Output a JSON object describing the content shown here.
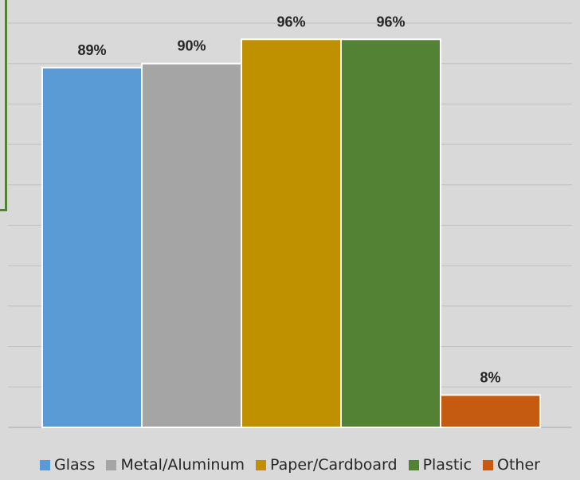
{
  "chart_data": {
    "type": "bar",
    "categories": [
      "Glass",
      "Metal/Aluminum",
      "Paper/Cardboard",
      "Plastic",
      "Other"
    ],
    "values": [
      89,
      90,
      96,
      96,
      8
    ],
    "value_labels": [
      "89%",
      "90%",
      "96%",
      "96%",
      "8%"
    ],
    "colors": [
      "#5b9bd5",
      "#a5a5a5",
      "#bf9000",
      "#548235",
      "#c55a11"
    ],
    "ylim": [
      0,
      100
    ],
    "grid": true,
    "legend": "bottom",
    "title": "",
    "xlabel": "",
    "ylabel": ""
  }
}
